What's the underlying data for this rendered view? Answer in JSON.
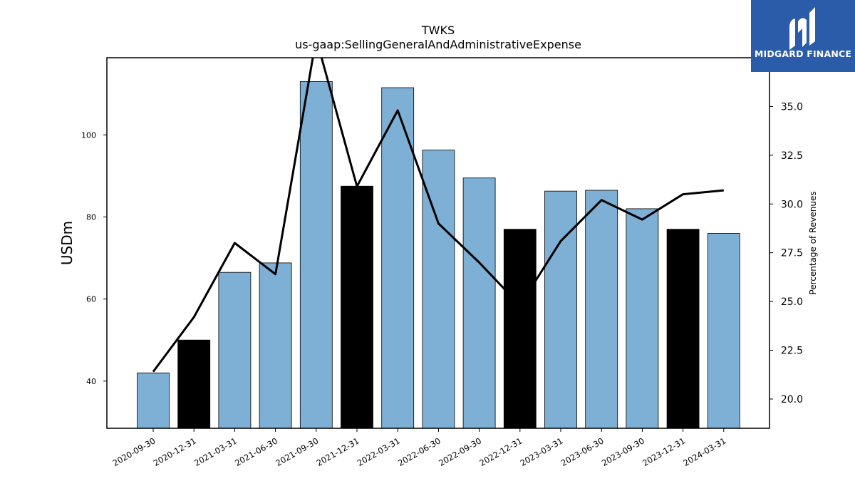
{
  "chart_data": {
    "type": "bar",
    "title": "TWKS",
    "subtitle": "us-gaap:SellingGeneralAndAdministrativeExpense",
    "ylabel": "USDm",
    "y2label": "Percentage of Revenues",
    "categories": [
      "2020-09-30",
      "2020-12-31",
      "2021-03-31",
      "2021-06-30",
      "2021-09-30",
      "2021-12-31",
      "2022-03-31",
      "2022-06-30",
      "2022-09-30",
      "2022-12-31",
      "2023-03-31",
      "2023-06-30",
      "2023-09-30",
      "2023-12-31",
      "2024-03-31"
    ],
    "values": [
      42.0,
      50.0,
      66.5,
      68.8,
      113.0,
      87.5,
      111.5,
      96.3,
      89.5,
      77.0,
      86.3,
      86.5,
      82.0,
      77.0,
      76.0
    ],
    "bar_colors": [
      "#7eb0d5",
      "#000000",
      "#7eb0d5",
      "#7eb0d5",
      "#7eb0d5",
      "#000000",
      "#7eb0d5",
      "#7eb0d5",
      "#7eb0d5",
      "#000000",
      "#7eb0d5",
      "#7eb0d5",
      "#7eb0d5",
      "#000000",
      "#7eb0d5"
    ],
    "ylim": [
      28.5,
      118.8
    ],
    "yticks": [
      "40",
      "60",
      "80",
      "100"
    ],
    "line_series": {
      "name": "Percentage of Revenues",
      "values": [
        21.4,
        24.2,
        28.0,
        26.4,
        38.5,
        30.9,
        34.8,
        29.0,
        27.0,
        24.8,
        28.1,
        30.2,
        29.2,
        30.5,
        30.7
      ]
    },
    "y2lim": [
      18.5,
      37.5
    ],
    "y2ticks": [
      "20.0",
      "22.5",
      "25.0",
      "27.5",
      "30.0",
      "32.5",
      "35.0"
    ],
    "grid": false
  },
  "logo": {
    "text": "MIDGARD FINANCE",
    "color": "#2a5caa"
  }
}
